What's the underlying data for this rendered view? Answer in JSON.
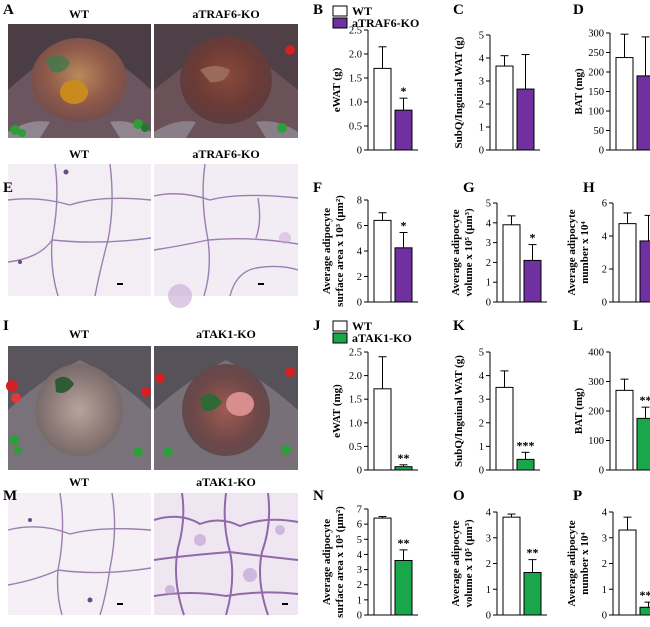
{
  "figure": {
    "panel_letters": {
      "A": "A",
      "B": "B",
      "C": "C",
      "D": "D",
      "E": "E",
      "F": "F",
      "G": "G",
      "H": "H",
      "I": "I",
      "J": "J",
      "K": "K",
      "L": "L",
      "M": "M",
      "N": "N",
      "O": "O",
      "P": "P"
    },
    "photo_labels": {
      "A_left": "WT",
      "A_right": "aTRAF6-KO",
      "E_left": "WT",
      "E_right": "aTRAF6-KO",
      "I_left": "WT",
      "I_right": "aTAK1-KO",
      "M_left": "WT",
      "M_right": "aTAK1-KO"
    }
  },
  "legends": {
    "top": {
      "wt": "WT",
      "ko": "aTRAF6-KO"
    },
    "bottom": {
      "wt": "WT",
      "ko": "aTAK1-KO"
    }
  },
  "colors": {
    "wt": "#ffffff",
    "traf6_ko": "#7030a0",
    "tak1_ko": "#1aa64a",
    "axis": "#000000"
  },
  "chart_data": [
    {
      "id": "B",
      "type": "bar",
      "ylabel": "eWAT (g)",
      "ylim": [
        0,
        2.5
      ],
      "ticks": [
        "0",
        "0.5",
        "1.0",
        "1.5",
        "2.0",
        "2.5"
      ],
      "tickvals": [
        0,
        0.5,
        1,
        1.5,
        2,
        2.5
      ],
      "series": [
        {
          "name": "WT",
          "value": 1.7,
          "err": 0.45
        },
        {
          "name": "aTRAF6-KO",
          "value": 0.83,
          "err": 0.25,
          "sig": "*"
        }
      ]
    },
    {
      "id": "C",
      "type": "bar",
      "ylabel": "SubQ/Inguinal WAT (g)",
      "ylim": [
        0,
        5
      ],
      "ticks": [
        "0",
        "1",
        "2",
        "3",
        "4",
        "5"
      ],
      "tickvals": [
        0,
        1,
        2,
        3,
        4,
        5
      ],
      "series": [
        {
          "name": "WT",
          "value": 3.65,
          "err": 0.45
        },
        {
          "name": "aTRAF6-KO",
          "value": 2.65,
          "err": 1.5
        }
      ]
    },
    {
      "id": "D",
      "type": "bar",
      "ylabel": "BAT (mg)",
      "ylim": [
        0,
        300
      ],
      "ticks": [
        "0",
        "50",
        "100",
        "150",
        "200",
        "250",
        "300"
      ],
      "tickvals": [
        0,
        50,
        100,
        150,
        200,
        250,
        300
      ],
      "series": [
        {
          "name": "WT",
          "value": 237,
          "err": 60
        },
        {
          "name": "aTRAF6-KO",
          "value": 190,
          "err": 100
        }
      ]
    },
    {
      "id": "F",
      "type": "bar",
      "ylabel_lines": [
        "Average adipocyte",
        "surface area x 10³ (μm²)"
      ],
      "ylim": [
        0,
        8
      ],
      "ticks": [
        "0",
        "2",
        "4",
        "6",
        "8"
      ],
      "tickvals": [
        0,
        2,
        4,
        6,
        8
      ],
      "series": [
        {
          "name": "WT",
          "value": 6.4,
          "err": 0.6
        },
        {
          "name": "aTRAF6-KO",
          "value": 4.25,
          "err": 1.2,
          "sig": "*"
        }
      ]
    },
    {
      "id": "G",
      "type": "bar",
      "ylabel_lines": [
        "Average adipocyte",
        "volume x 10⁵ (μm³)"
      ],
      "ylim": [
        0,
        5
      ],
      "ticks": [
        "0",
        "1",
        "2",
        "3",
        "4",
        "5"
      ],
      "tickvals": [
        0,
        1,
        2,
        3,
        4,
        5
      ],
      "series": [
        {
          "name": "WT",
          "value": 3.9,
          "err": 0.45
        },
        {
          "name": "aTRAF6-KO",
          "value": 2.1,
          "err": 0.8,
          "sig": "*"
        }
      ]
    },
    {
      "id": "H",
      "type": "bar",
      "ylabel_lines": [
        "Average adipocyte",
        "number x 10⁴"
      ],
      "ylim": [
        0,
        6
      ],
      "ticks": [
        "0",
        "2",
        "4",
        "6"
      ],
      "tickvals": [
        0,
        2,
        4,
        6
      ],
      "series": [
        {
          "name": "WT",
          "value": 4.75,
          "err": 0.65
        },
        {
          "name": "aTRAF6-KO",
          "value": 3.7,
          "err": 1.55
        }
      ]
    },
    {
      "id": "J",
      "type": "bar",
      "ylabel": "eWAT (mg)",
      "ylim": [
        0,
        2.5
      ],
      "ticks": [
        "0",
        "0.5",
        "1.0",
        "1.5",
        "2.0",
        "2.5"
      ],
      "tickvals": [
        0,
        0.5,
        1,
        1.5,
        2,
        2.5
      ],
      "series": [
        {
          "name": "WT",
          "value": 1.72,
          "err": 0.68
        },
        {
          "name": "aTAK1-KO",
          "value": 0.07,
          "err": 0.04,
          "sig": "**"
        }
      ]
    },
    {
      "id": "K",
      "type": "bar",
      "ylabel": "SubQ/Inguinal WAT (g)",
      "ylim": [
        0,
        5
      ],
      "ticks": [
        "0",
        "1",
        "2",
        "3",
        "4",
        "5"
      ],
      "tickvals": [
        0,
        1,
        2,
        3,
        4,
        5
      ],
      "series": [
        {
          "name": "WT",
          "value": 3.5,
          "err": 0.7
        },
        {
          "name": "aTAK1-KO",
          "value": 0.45,
          "err": 0.3,
          "sig": "***"
        }
      ]
    },
    {
      "id": "L",
      "type": "bar",
      "ylabel": "BAT (mg)",
      "ylim": [
        0,
        400
      ],
      "ticks": [
        "0",
        "100",
        "200",
        "300",
        "400"
      ],
      "tickvals": [
        0,
        100,
        200,
        300,
        400
      ],
      "series": [
        {
          "name": "WT",
          "value": 270,
          "err": 38
        },
        {
          "name": "aTAK1-KO",
          "value": 175,
          "err": 38,
          "sig": "**"
        }
      ]
    },
    {
      "id": "N",
      "type": "bar",
      "ylabel_lines": [
        "Average adipocyte",
        "surface area x 10³ (μm²)"
      ],
      "ylim": [
        0,
        7
      ],
      "ticks": [
        "0",
        "1",
        "2",
        "3",
        "4",
        "5",
        "6",
        "7"
      ],
      "tickvals": [
        0,
        1,
        2,
        3,
        4,
        5,
        6,
        7
      ],
      "series": [
        {
          "name": "WT",
          "value": 6.4,
          "err": 0.1
        },
        {
          "name": "aTAK1-KO",
          "value": 3.6,
          "err": 0.7,
          "sig": "**"
        }
      ]
    },
    {
      "id": "O",
      "type": "bar",
      "ylabel_lines": [
        "Average adipocyte",
        "volume x 10⁵ (μm³)"
      ],
      "ylim": [
        0,
        4
      ],
      "ticks": [
        "0",
        "1",
        "2",
        "3",
        "4"
      ],
      "tickvals": [
        0,
        1,
        2,
        3,
        4
      ],
      "series": [
        {
          "name": "WT",
          "value": 3.8,
          "err": 0.12
        },
        {
          "name": "aTAK1-KO",
          "value": 1.65,
          "err": 0.5,
          "sig": "**"
        }
      ]
    },
    {
      "id": "P",
      "type": "bar",
      "ylabel_lines": [
        "Average adipocyte",
        "number x 10⁴"
      ],
      "ylim": [
        0,
        4
      ],
      "ticks": [
        "0",
        "1",
        "2",
        "3",
        "4"
      ],
      "tickvals": [
        0,
        1,
        2,
        3,
        4
      ],
      "series": [
        {
          "name": "WT",
          "value": 3.3,
          "err": 0.5
        },
        {
          "name": "aTAK1-KO",
          "value": 0.3,
          "err": 0.2,
          "sig": "***"
        }
      ]
    }
  ]
}
